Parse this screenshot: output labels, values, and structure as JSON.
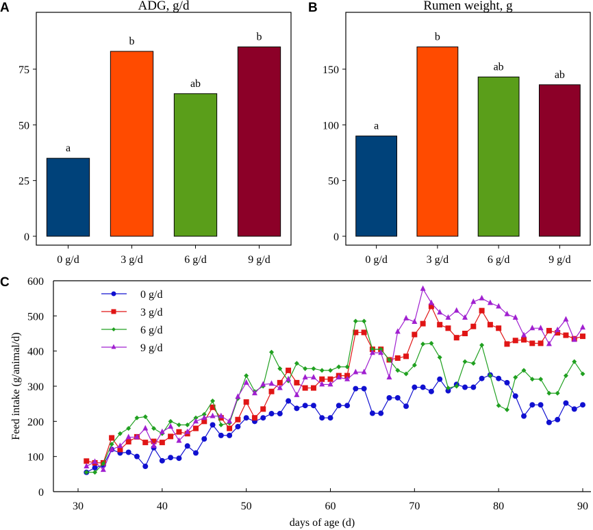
{
  "chart_data": [
    {
      "panel": "A",
      "type": "bar",
      "title": "ADG, g/d",
      "categories": [
        "0 g/d",
        "3 g/d",
        "6 g/d",
        "9 g/d"
      ],
      "values": [
        35,
        83,
        64,
        85
      ],
      "letters": [
        "a",
        "b",
        "ab",
        "b"
      ],
      "colors": [
        "#00427a",
        "#ff4b00",
        "#5a9e1a",
        "#8c0028"
      ],
      "ylim": [
        0,
        100
      ],
      "yticks": [
        0,
        25,
        50,
        75
      ]
    },
    {
      "panel": "B",
      "type": "bar",
      "title": "Rumen weight, g",
      "categories": [
        "0 g/d",
        "3 g/d",
        "6 g/d",
        "9 g/d"
      ],
      "values": [
        90,
        170,
        143,
        136
      ],
      "letters": [
        "a",
        "b",
        "ab",
        "ab"
      ],
      "colors": [
        "#00427a",
        "#ff4b00",
        "#5a9e1a",
        "#8c0028"
      ],
      "ylim": [
        0,
        200
      ],
      "yticks": [
        0,
        50,
        100,
        150
      ]
    },
    {
      "panel": "C",
      "type": "line",
      "xlabel": "days of age (d)",
      "ylabel": "Feed intake (g/animal/d)",
      "xlim": [
        28,
        91
      ],
      "ylim": [
        0,
        600
      ],
      "xticks": [
        30,
        40,
        50,
        60,
        70,
        80,
        90
      ],
      "yticks": [
        0,
        100,
        200,
        300,
        400,
        500,
        600
      ],
      "legend": "top-left",
      "x": [
        31,
        32,
        33,
        34,
        35,
        36,
        37,
        38,
        39,
        40,
        41,
        42,
        43,
        44,
        45,
        46,
        47,
        48,
        49,
        50,
        51,
        52,
        53,
        54,
        55,
        56,
        57,
        58,
        59,
        60,
        61,
        62,
        63,
        64,
        65,
        66,
        67,
        68,
        69,
        70,
        71,
        72,
        73,
        74,
        75,
        76,
        77,
        78,
        79,
        80,
        81,
        82,
        83,
        84,
        85,
        86,
        87,
        88,
        89,
        90
      ],
      "series": [
        {
          "name": "0 g/d",
          "color": "#1010d0",
          "marker": "circle",
          "values": [
            55,
            68,
            75,
            120,
            110,
            112,
            100,
            72,
            125,
            88,
            97,
            95,
            130,
            110,
            150,
            190,
            160,
            160,
            185,
            210,
            200,
            210,
            222,
            222,
            258,
            237,
            245,
            245,
            210,
            210,
            245,
            245,
            293,
            293,
            223,
            223,
            267,
            267,
            243,
            297,
            297,
            285,
            320,
            287,
            305,
            297,
            297,
            322,
            332,
            322,
            310,
            272,
            215,
            247,
            247,
            197,
            205,
            252,
            235,
            247
          ]
        },
        {
          "name": "3 g/d",
          "color": "#e01515",
          "marker": "square",
          "values": [
            87,
            82,
            82,
            153,
            120,
            142,
            156,
            140,
            143,
            140,
            157,
            170,
            165,
            180,
            200,
            240,
            210,
            180,
            205,
            255,
            210,
            235,
            285,
            310,
            345,
            310,
            295,
            295,
            320,
            320,
            330,
            330,
            453,
            453,
            405,
            405,
            375,
            380,
            385,
            447,
            478,
            527,
            475,
            465,
            438,
            450,
            470,
            515,
            475,
            465,
            420,
            430,
            432,
            422,
            422,
            458,
            452,
            445,
            435,
            442
          ]
        },
        {
          "name": "6 g/d",
          "color": "#20a020",
          "marker": "diamond",
          "values": [
            55,
            55,
            80,
            135,
            165,
            180,
            210,
            213,
            180,
            165,
            200,
            190,
            190,
            210,
            220,
            258,
            190,
            195,
            265,
            330,
            285,
            300,
            397,
            350,
            315,
            365,
            350,
            350,
            345,
            345,
            355,
            355,
            485,
            485,
            405,
            405,
            375,
            345,
            335,
            360,
            420,
            422,
            382,
            295,
            300,
            370,
            365,
            417,
            330,
            245,
            233,
            325,
            345,
            320,
            320,
            280,
            280,
            330,
            370,
            335
          ]
        },
        {
          "name": "9 g/d",
          "color": "#a020d0",
          "marker": "triangle",
          "values": [
            72,
            85,
            62,
            120,
            130,
            155,
            155,
            180,
            130,
            170,
            185,
            145,
            170,
            200,
            210,
            215,
            215,
            200,
            270,
            310,
            280,
            305,
            307,
            295,
            320,
            275,
            325,
            325,
            305,
            305,
            325,
            320,
            340,
            340,
            395,
            395,
            325,
            455,
            493,
            483,
            577,
            537,
            510,
            495,
            515,
            495,
            540,
            550,
            537,
            527,
            505,
            495,
            445,
            465,
            465,
            420,
            460,
            490,
            432,
            467
          ]
        }
      ]
    }
  ]
}
